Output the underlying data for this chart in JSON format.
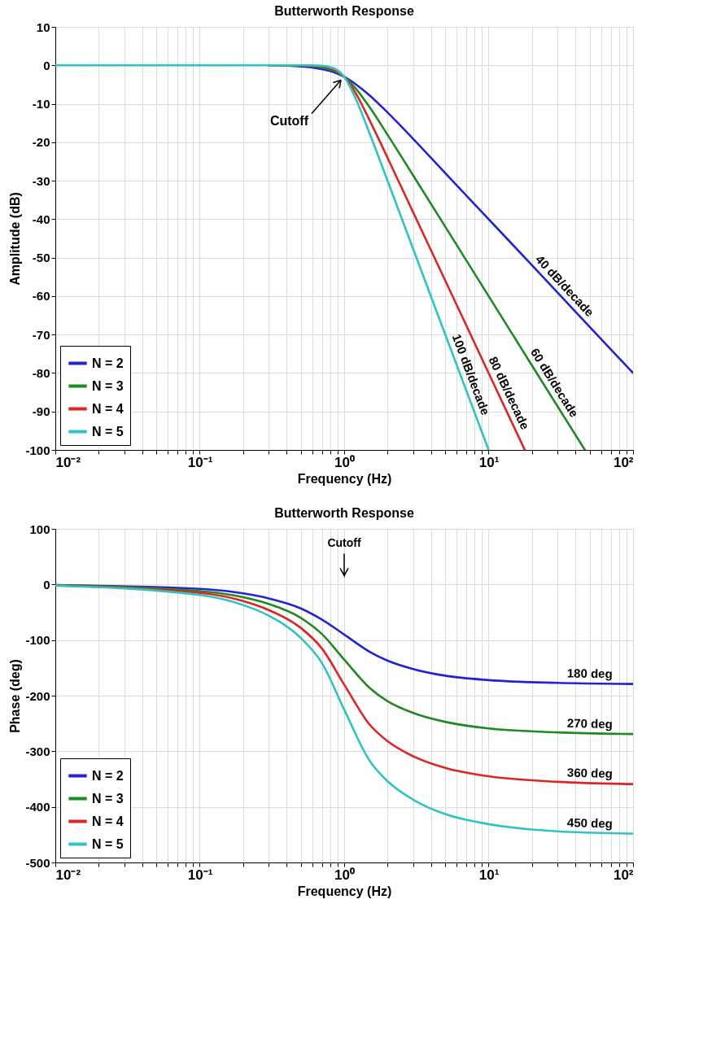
{
  "chart_data": [
    {
      "type": "line",
      "title": "Butterworth Response",
      "xlabel": "Frequency (Hz)",
      "ylabel": "Amplitude (dB)",
      "log": "x",
      "grid": true,
      "legend": "bottom left",
      "line_style": "solid",
      "marker": "none",
      "xlim": [
        0.01,
        100
      ],
      "xticks": [
        {
          "value": 0.01,
          "label": "10⁻²"
        },
        {
          "value": 0.02,
          "label": null
        },
        {
          "value": 0.03,
          "label": null
        },
        {
          "value": 0.04,
          "label": null
        },
        {
          "value": 0.05,
          "label": null
        },
        {
          "value": 0.06,
          "label": null
        },
        {
          "value": 0.07,
          "label": null
        },
        {
          "value": 0.08,
          "label": null
        },
        {
          "value": 0.09,
          "label": null
        },
        {
          "value": 0.1,
          "label": "10⁻¹"
        },
        {
          "value": 0.2,
          "label": null
        },
        {
          "value": 0.3,
          "label": null
        },
        {
          "value": 0.4,
          "label": null
        },
        {
          "value": 0.5,
          "label": null
        },
        {
          "value": 0.6,
          "label": null
        },
        {
          "value": 0.7,
          "label": null
        },
        {
          "value": 0.8,
          "label": null
        },
        {
          "value": 0.9,
          "label": null
        },
        {
          "value": 1,
          "label": "10⁰"
        },
        {
          "value": 2,
          "label": null
        },
        {
          "value": 3,
          "label": null
        },
        {
          "value": 4,
          "label": null
        },
        {
          "value": 5,
          "label": null
        },
        {
          "value": 6,
          "label": null
        },
        {
          "value": 7,
          "label": null
        },
        {
          "value": 8,
          "label": null
        },
        {
          "value": 9,
          "label": null
        },
        {
          "value": 10,
          "label": "10¹"
        },
        {
          "value": 20,
          "label": null
        },
        {
          "value": 30,
          "label": null
        },
        {
          "value": 40,
          "label": null
        },
        {
          "value": 50,
          "label": null
        },
        {
          "value": 60,
          "label": null
        },
        {
          "value": 70,
          "label": null
        },
        {
          "value": 80,
          "label": null
        },
        {
          "value": 90,
          "label": null
        },
        {
          "value": 100,
          "label": "10²"
        }
      ],
      "ylim": [
        -100,
        10
      ],
      "yticks": [
        -100,
        -90,
        -80,
        -70,
        -60,
        -50,
        -40,
        -30,
        -20,
        -10,
        0,
        10
      ],
      "series": [
        {
          "name": "N = 2",
          "color": "#2323d6",
          "x": [
            0.3,
            0.5,
            0.7,
            0.85,
            1,
            1.2,
            1.5,
            2,
            3,
            5,
            10,
            20,
            50,
            100
          ],
          "values": [
            0,
            -0.3,
            -1.0,
            -1.8,
            -3.0,
            -4.9,
            -7.8,
            -12.3,
            -19.1,
            -28.0,
            -40.0,
            -52.0,
            -68.0,
            -80.0
          ]
        },
        {
          "name": "N = 3",
          "color": "#1f8a1f",
          "x": [
            0.3,
            0.5,
            0.7,
            0.85,
            1,
            1.2,
            1.5,
            2,
            3,
            5,
            10,
            20,
            46.4
          ],
          "values": [
            0,
            -0.1,
            -0.5,
            -1.4,
            -3.0,
            -6.0,
            -10.9,
            -18.1,
            -28.6,
            -41.9,
            -60.0,
            -78.1,
            -100
          ]
        },
        {
          "name": "N = 4",
          "color": "#e02424",
          "x": [
            0.5,
            0.7,
            0.85,
            1,
            1.2,
            1.5,
            2,
            3,
            5,
            10,
            17.8
          ],
          "values": [
            0,
            -0.2,
            -1.1,
            -3.0,
            -7.2,
            -14.3,
            -24.1,
            -38.2,
            -55.9,
            -80.0,
            -100
          ]
        },
        {
          "name": "N = 5",
          "color": "#2ec4c4",
          "x": [
            0.01,
            0.1,
            0.3,
            0.5,
            0.7,
            0.85,
            1,
            1.2,
            1.5,
            2,
            3,
            5,
            10
          ],
          "values": [
            0,
            0,
            0,
            0,
            -0.1,
            -0.8,
            -3.0,
            -8.6,
            -17.7,
            -30.1,
            -47.7,
            -69.9,
            -100
          ]
        }
      ],
      "annotations": [
        {
          "text": "Cutoff",
          "x": 1,
          "y": -3
        },
        {
          "text": "40 dB/decade",
          "x": 30,
          "y": -59.1
        },
        {
          "text": "60 dB/decade",
          "x": 25,
          "y": -83.9
        },
        {
          "text": "80 dB/decade",
          "x": 12,
          "y": -86.3
        },
        {
          "text": "100 dB/decade",
          "x": 6.5,
          "y": -81.3
        }
      ]
    },
    {
      "type": "line",
      "title": "Butterworth Response",
      "xlabel": "Frequency (Hz)",
      "ylabel": "Phase (deg)",
      "log": "x",
      "grid": true,
      "legend": "bottom left",
      "line_style": "solid",
      "marker": "none",
      "xlim": [
        0.01,
        100
      ],
      "xticks": [
        {
          "value": 0.01,
          "label": "10⁻²"
        },
        {
          "value": 0.02,
          "label": null
        },
        {
          "value": 0.03,
          "label": null
        },
        {
          "value": 0.04,
          "label": null
        },
        {
          "value": 0.05,
          "label": null
        },
        {
          "value": 0.06,
          "label": null
        },
        {
          "value": 0.07,
          "label": null
        },
        {
          "value": 0.08,
          "label": null
        },
        {
          "value": 0.09,
          "label": null
        },
        {
          "value": 0.1,
          "label": "10⁻¹"
        },
        {
          "value": 0.2,
          "label": null
        },
        {
          "value": 0.3,
          "label": null
        },
        {
          "value": 0.4,
          "label": null
        },
        {
          "value": 0.5,
          "label": null
        },
        {
          "value": 0.6,
          "label": null
        },
        {
          "value": 0.7,
          "label": null
        },
        {
          "value": 0.8,
          "label": null
        },
        {
          "value": 0.9,
          "label": null
        },
        {
          "value": 1,
          "label": "10⁰"
        },
        {
          "value": 2,
          "label": null
        },
        {
          "value": 3,
          "label": null
        },
        {
          "value": 4,
          "label": null
        },
        {
          "value": 5,
          "label": null
        },
        {
          "value": 6,
          "label": null
        },
        {
          "value": 7,
          "label": null
        },
        {
          "value": 8,
          "label": null
        },
        {
          "value": 9,
          "label": null
        },
        {
          "value": 10,
          "label": "10¹"
        },
        {
          "value": 20,
          "label": null
        },
        {
          "value": 30,
          "label": null
        },
        {
          "value": 40,
          "label": null
        },
        {
          "value": 50,
          "label": null
        },
        {
          "value": 60,
          "label": null
        },
        {
          "value": 70,
          "label": null
        },
        {
          "value": 80,
          "label": null
        },
        {
          "value": 90,
          "label": null
        },
        {
          "value": 100,
          "label": "10²"
        }
      ],
      "ylim": [
        -500,
        100
      ],
      "yticks": [
        -500,
        -400,
        -300,
        -200,
        -100,
        0,
        100
      ],
      "series": [
        {
          "name": "N = 2",
          "color": "#2323d6",
          "x": [
            0.01,
            0.1,
            0.2,
            0.3,
            0.5,
            0.7,
            1,
            1.5,
            2,
            3,
            5,
            10,
            30,
            100
          ],
          "values": [
            -1,
            -8,
            -16,
            -25,
            -43,
            -63,
            -90,
            -121,
            -137,
            -152,
            -164,
            -172,
            -177,
            -179
          ]
        },
        {
          "name": "N = 3",
          "color": "#1f8a1f",
          "x": [
            0.01,
            0.1,
            0.2,
            0.3,
            0.5,
            0.7,
            1,
            1.5,
            2,
            3,
            5,
            10,
            30,
            100
          ],
          "values": [
            -1,
            -12,
            -23,
            -35,
            -60,
            -89,
            -135,
            -186,
            -210,
            -231,
            -247,
            -259,
            -266,
            -269
          ]
        },
        {
          "name": "N = 4",
          "color": "#e02424",
          "x": [
            0.01,
            0.1,
            0.2,
            0.3,
            0.5,
            0.7,
            1,
            1.5,
            2,
            3,
            5,
            10,
            30,
            100
          ],
          "values": [
            -2,
            -15,
            -30,
            -46,
            -78,
            -115,
            -180,
            -252,
            -282,
            -309,
            -330,
            -345,
            -355,
            -359
          ]
        },
        {
          "name": "N = 5",
          "color": "#2ec4c4",
          "x": [
            0.01,
            0.1,
            0.2,
            0.3,
            0.5,
            0.7,
            1,
            1.5,
            2,
            3,
            5,
            10,
            30,
            100
          ],
          "values": [
            -2,
            -19,
            -37,
            -56,
            -96,
            -141,
            -225,
            -317,
            -354,
            -387,
            -413,
            -431,
            -444,
            -448
          ]
        }
      ],
      "annotations": [
        "Cutoff",
        {
          "text": "180 deg",
          "x": 50,
          "y": -178
        },
        {
          "text": "270 deg",
          "x": 50,
          "y": -268
        },
        {
          "text": "360 deg",
          "x": 50,
          "y": -357
        },
        {
          "text": "450 deg",
          "x": 50,
          "y": -447
        }
      ]
    }
  ]
}
